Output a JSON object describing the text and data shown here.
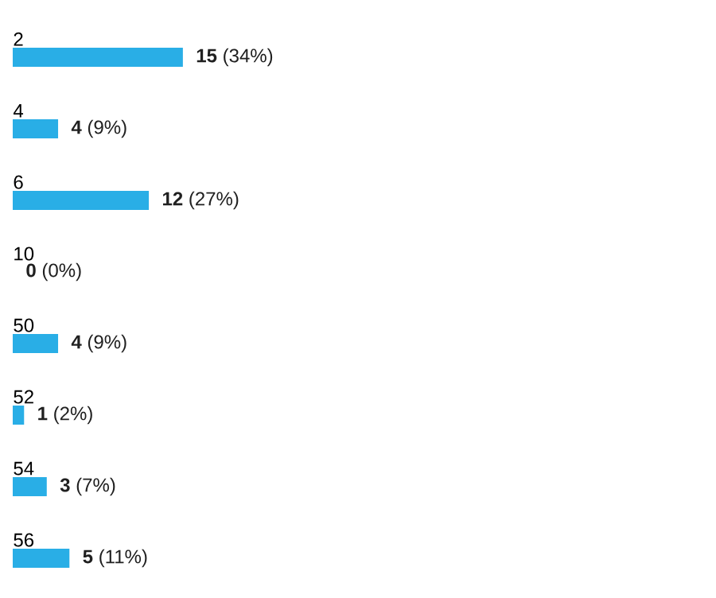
{
  "chart_data": {
    "type": "bar",
    "orientation": "horizontal",
    "categories": [
      "2",
      "4",
      "6",
      "10",
      "50",
      "52",
      "54",
      "56"
    ],
    "values": [
      15,
      4,
      12,
      0,
      4,
      1,
      3,
      5
    ],
    "color": "#29aee6",
    "value_labels": [
      "**15** (34%)",
      "**4** (9%)",
      "**12** (27%)",
      "**0** (0%)",
      "**4** (9%)",
      "**1** (2%)",
      "**3** (7%)",
      "**5** (11%)"
    ]
  }
}
